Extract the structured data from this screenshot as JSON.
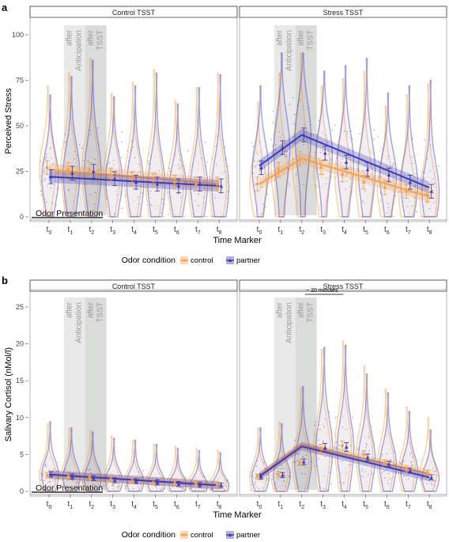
{
  "figure": {
    "panel_letters": [
      "a",
      "b"
    ],
    "legend_title": "Odor condition",
    "legend_items": [
      {
        "label": "control",
        "color": "#f5a04a"
      },
      {
        "label": "partner",
        "color": "#3b3bb3"
      }
    ],
    "odor_presentation_label": "Odor Presentation",
    "shade_labels": [
      "after",
      "Anticipation",
      "after",
      "TSST"
    ],
    "annotation": "~ 20 minutes"
  },
  "chart_data": [
    {
      "type": "line",
      "panel": "a",
      "facets": [
        "Control TSST",
        "Stress TSST"
      ],
      "xlabel": "Time Marker",
      "ylabel": "Perceived Stress",
      "ylim": [
        0,
        100
      ],
      "yticks": [
        0,
        25,
        50,
        75,
        100
      ],
      "x_tick_labels": [
        "t0",
        "t1",
        "t2",
        "t3",
        "t4",
        "t5",
        "t6",
        "t7",
        "t8"
      ],
      "series": [
        {
          "name": "control",
          "color": "#f5a04a",
          "control_tsst": [
            27,
            26,
            26,
            23,
            21,
            20,
            19,
            18,
            18
          ],
          "stress_tsst": [
            18,
            26,
            32,
            27,
            23,
            19,
            16,
            14,
            12
          ],
          "fit_control": [
            26,
            18
          ],
          "fit_stress": [
            18,
            32,
            11
          ]
        },
        {
          "name": "partner",
          "color": "#3b3bb3",
          "control_tsst": [
            22,
            24,
            25,
            21,
            19,
            18,
            17,
            18,
            17
          ],
          "stress_tsst": [
            27,
            38,
            45,
            35,
            30,
            26,
            23,
            19,
            14
          ],
          "fit_control": [
            22,
            17
          ],
          "fit_stress": [
            28,
            45,
            16
          ]
        }
      ]
    },
    {
      "type": "line",
      "panel": "b",
      "facets": [
        "Control TSST",
        "Stress TSST"
      ],
      "xlabel": "Time Marker",
      "ylabel": "Salivary Cortisol (nMol/l)",
      "ylim": [
        0,
        25
      ],
      "yticks": [
        0,
        5,
        10,
        15,
        20,
        25
      ],
      "x_tick_labels": [
        "t0",
        "t1",
        "t2",
        "t3",
        "t4",
        "t5",
        "t6",
        "t7",
        "t8"
      ],
      "series": [
        {
          "name": "control",
          "color": "#f5a04a",
          "control_tsst": [
            2.2,
            2.0,
            1.9,
            1.6,
            1.4,
            1.2,
            1.1,
            1.0,
            0.9
          ],
          "stress_tsst": [
            2.0,
            2.3,
            3.9,
            5.8,
            6.2,
            5.0,
            3.9,
            3.0,
            2.5
          ],
          "fit_control": [
            2.2,
            0.9
          ],
          "fit_stress": [
            2.1,
            6.3,
            2.4
          ]
        },
        {
          "name": "partner",
          "color": "#3b3bb3",
          "control_tsst": [
            2.3,
            2.0,
            1.8,
            1.5,
            1.4,
            1.2,
            1.0,
            0.9,
            0.8
          ],
          "stress_tsst": [
            2.0,
            2.2,
            4.0,
            5.9,
            6.0,
            4.6,
            3.7,
            2.8,
            1.9
          ],
          "fit_control": [
            2.3,
            0.8
          ],
          "fit_stress": [
            2.0,
            6.1,
            1.9
          ]
        }
      ]
    }
  ]
}
